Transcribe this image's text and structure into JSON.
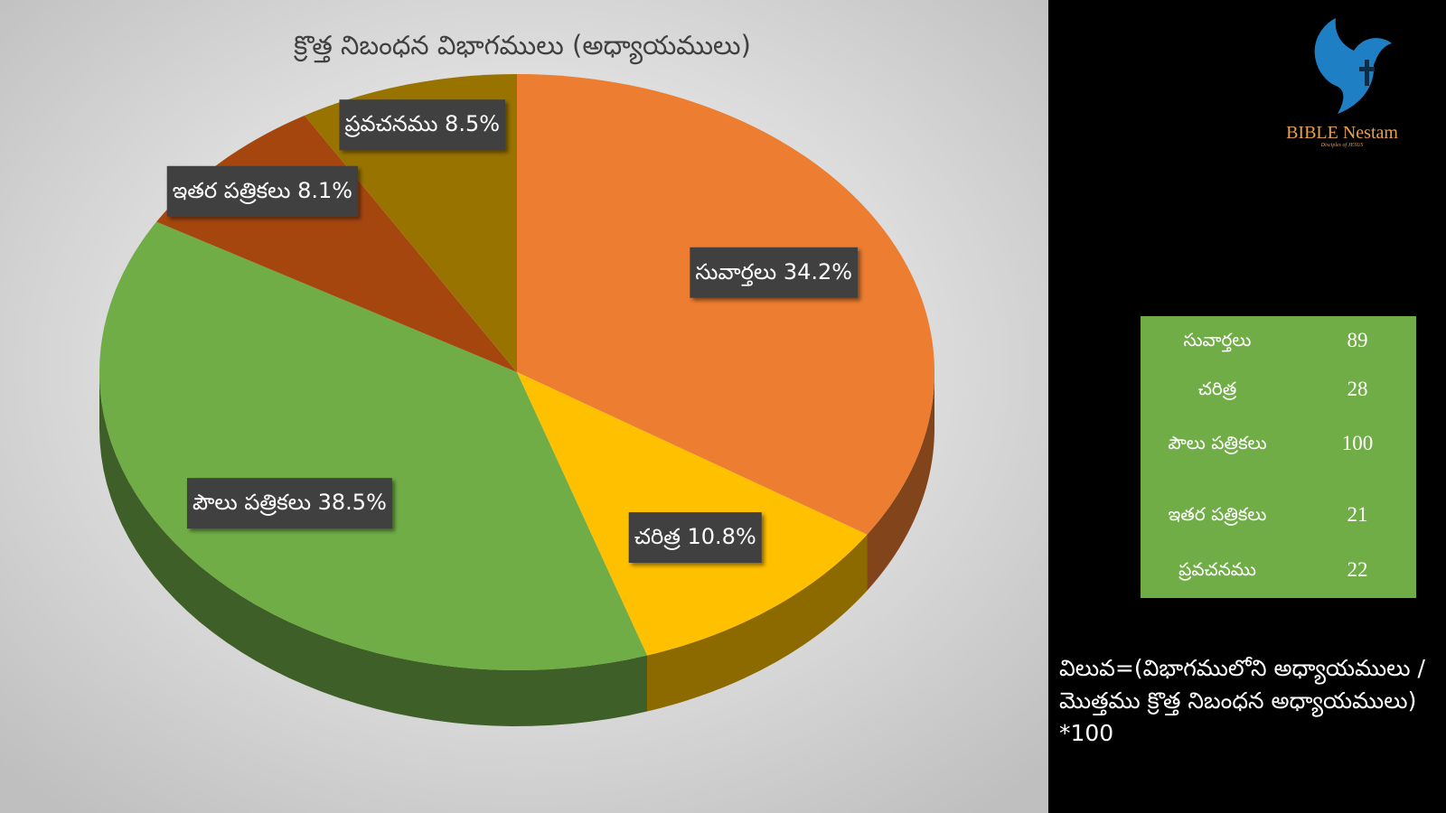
{
  "chart_data": {
    "type": "pie",
    "title": "క్రొత్త నిబంధన విభాగములు (అధ్యాయములు)",
    "categories": [
      "సువార్తలు",
      "చరిత్ర",
      "పౌలు పత్రికలు",
      "ఇతర పత్రికలు",
      "ప్రవచనము"
    ],
    "values": [
      34.2,
      10.8,
      38.5,
      8.1,
      8.5
    ],
    "value_labels": [
      "34.2%",
      "10.8%",
      "38.5%",
      "8.1%",
      "8.5%"
    ],
    "colors": [
      "#ED7D31",
      "#FFC000",
      "#70AD47",
      "#A5460F",
      "#997300"
    ]
  },
  "table": {
    "rows": [
      [
        "సువార్తలు",
        "89"
      ],
      [
        "చరిత్ర",
        "28"
      ],
      [
        "పౌలు పత్రికలు",
        "100"
      ],
      [
        "ఇతర పత్రికలు",
        "21"
      ],
      [
        "ప్రవచనము",
        "22"
      ]
    ]
  },
  "note": "విలువ=(విభాగములోని అధ్యాయములు / మొత్తము క్రొత్త నిబంధన అధ్యాయములు) *100",
  "logo": {
    "name": "BIBLE Nestam",
    "tagline": "Disciples of JESUS"
  }
}
